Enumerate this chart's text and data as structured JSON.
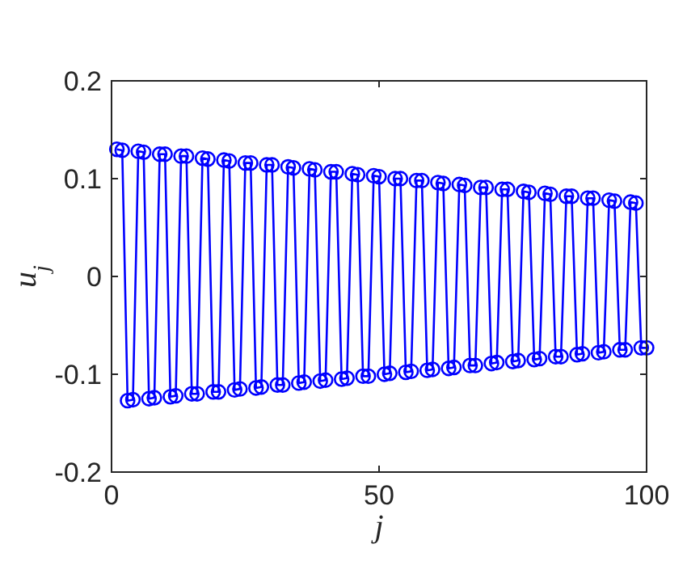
{
  "chart_data": {
    "type": "line",
    "xlabel": "j",
    "ylabel": "u$_{j}$",
    "x": [
      1,
      2,
      3,
      4,
      5,
      6,
      7,
      8,
      9,
      10,
      11,
      12,
      13,
      14,
      15,
      16,
      17,
      18,
      19,
      20,
      21,
      22,
      23,
      24,
      25,
      26,
      27,
      28,
      29,
      30,
      31,
      32,
      33,
      34,
      35,
      36,
      37,
      38,
      39,
      40,
      41,
      42,
      43,
      44,
      45,
      46,
      47,
      48,
      49,
      50,
      51,
      52,
      53,
      54,
      55,
      56,
      57,
      58,
      59,
      60,
      61,
      62,
      63,
      64,
      65,
      66,
      67,
      68,
      69,
      70,
      71,
      72,
      73,
      74,
      75,
      76,
      77,
      78,
      79,
      80,
      81,
      82,
      83,
      84,
      85,
      86,
      87,
      88,
      89,
      90,
      91,
      92,
      93,
      94,
      95,
      96,
      97,
      98,
      99,
      100
    ],
    "series": [
      {
        "color": "#0000ff",
        "values": [
          0.13,
          0.129,
          -0.127,
          -0.126,
          0.128,
          0.127,
          -0.125,
          -0.124,
          0.125,
          0.125,
          -0.123,
          -0.122,
          0.123,
          0.123,
          -0.12,
          -0.12,
          0.121,
          0.12,
          -0.118,
          -0.118,
          0.119,
          0.118,
          -0.116,
          -0.115,
          0.116,
          0.116,
          -0.114,
          -0.113,
          0.114,
          0.114,
          -0.111,
          -0.111,
          0.112,
          0.111,
          -0.109,
          -0.108,
          0.11,
          0.109,
          -0.107,
          -0.106,
          0.107,
          0.107,
          -0.105,
          -0.104,
          0.105,
          0.104,
          -0.102,
          -0.102,
          0.103,
          0.102,
          -0.1,
          -0.099,
          0.1,
          0.1,
          -0.098,
          -0.097,
          0.098,
          0.098,
          -0.096,
          -0.095,
          0.096,
          0.095,
          -0.094,
          -0.093,
          0.094,
          0.093,
          -0.091,
          -0.091,
          0.091,
          0.091,
          -0.089,
          -0.088,
          0.089,
          0.089,
          -0.087,
          -0.086,
          0.087,
          0.086,
          -0.085,
          -0.084,
          0.085,
          0.084,
          -0.082,
          -0.082,
          0.082,
          0.082,
          -0.08,
          -0.079,
          0.08,
          0.08,
          -0.078,
          -0.077,
          0.078,
          0.077,
          -0.075,
          -0.075,
          0.076,
          0.075,
          -0.073,
          -0.073
        ]
      }
    ],
    "xlim": [
      0,
      100
    ],
    "xticks": [
      0,
      50,
      100
    ],
    "ylim": [
      -0.2,
      0.2
    ],
    "yticks": [
      -0.2,
      -0.1,
      0,
      0.1,
      0.2
    ],
    "marker": "circle",
    "line_style": "solid",
    "grid": false
  }
}
